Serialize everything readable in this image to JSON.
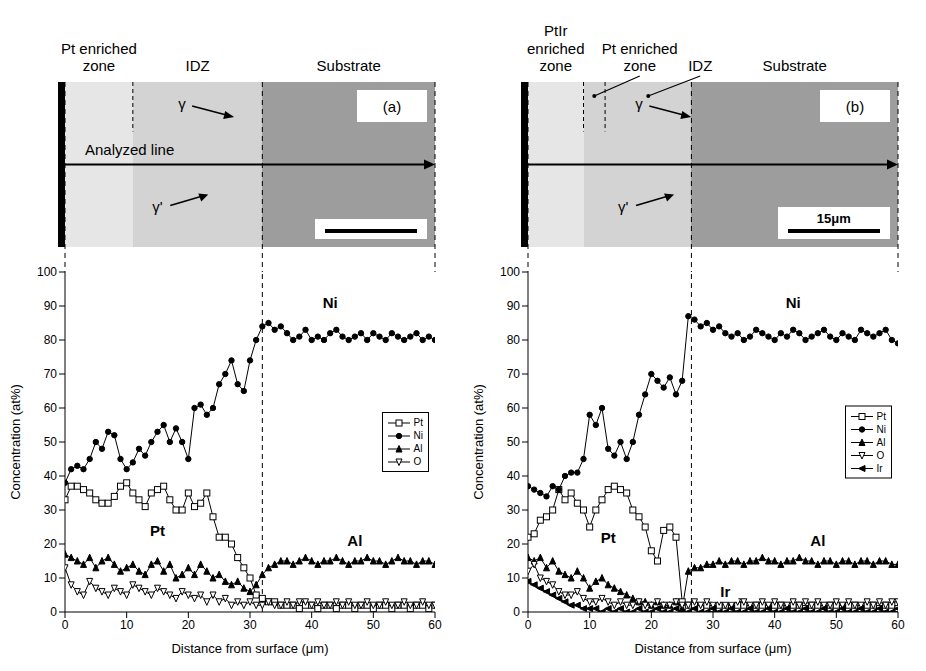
{
  "chart_data": [
    {
      "type": "line",
      "x": [
        0,
        1,
        2,
        3,
        4,
        5,
        6,
        7,
        8,
        9,
        10,
        11,
        12,
        13,
        14,
        15,
        16,
        17,
        18,
        19,
        20,
        21,
        22,
        23,
        24,
        25,
        26,
        27,
        28,
        29,
        30,
        31,
        32,
        33,
        34,
        35,
        36,
        37,
        38,
        39,
        40,
        41,
        42,
        43,
        44,
        45,
        46,
        47,
        48,
        49,
        50,
        51,
        52,
        53,
        54,
        55,
        56,
        57,
        58,
        59,
        60
      ],
      "xlim": [
        0,
        60
      ],
      "xticks": [
        0,
        10,
        20,
        30,
        40,
        50,
        60
      ],
      "ylim": [
        0,
        100
      ],
      "yticks": [
        0,
        10,
        20,
        30,
        40,
        50,
        60,
        70,
        80,
        90,
        100
      ],
      "xlabel": "Distance from surface (μm)",
      "ylabel": "Concentration (at%)",
      "grid": false,
      "legend": "center right",
      "interface": 32,
      "series": [
        {
          "name": "Pt",
          "color": "#000000",
          "marker": "open_square",
          "values": [
            33,
            37,
            37,
            36,
            35,
            33,
            32,
            32,
            34,
            37,
            38,
            35,
            33,
            31,
            35,
            36,
            37,
            33,
            30,
            30,
            35,
            31,
            32,
            35,
            28,
            22,
            22,
            20,
            16,
            13,
            10,
            5,
            4,
            3,
            3,
            2,
            2,
            2,
            1,
            2,
            2,
            1,
            2,
            2,
            1,
            2,
            2,
            1,
            2,
            2,
            1,
            2,
            2,
            1,
            2,
            2,
            1,
            2,
            2,
            1,
            2
          ]
        },
        {
          "name": "Ni",
          "color": "#000000",
          "marker": "circle",
          "values": [
            38,
            42,
            43,
            42,
            45,
            50,
            48,
            53,
            52,
            45,
            42,
            44,
            48,
            46,
            50,
            53,
            55,
            50,
            54,
            50,
            45,
            60,
            61,
            58,
            60,
            67,
            70,
            74,
            67,
            65,
            74,
            80,
            84,
            85,
            83,
            84,
            82,
            80,
            81,
            83,
            80,
            81,
            80,
            82,
            83,
            81,
            80,
            81,
            82,
            80,
            82,
            81,
            80,
            82,
            81,
            80,
            81,
            82,
            80,
            81,
            80
          ]
        },
        {
          "name": "Al",
          "color": "#000000",
          "marker": "triangle_up",
          "values": [
            17,
            16,
            15,
            14,
            16,
            13,
            15,
            16,
            14,
            12,
            13,
            14,
            12,
            11,
            14,
            15,
            12,
            14,
            10,
            11,
            13,
            11,
            14,
            12,
            10,
            11,
            9,
            8,
            9,
            7,
            6,
            8,
            11,
            13,
            14,
            15,
            15,
            14,
            15,
            16,
            15,
            14,
            15,
            15,
            16,
            15,
            14,
            15,
            15,
            16,
            15,
            15,
            14,
            15,
            16,
            15,
            15,
            14,
            15,
            15,
            14
          ]
        },
        {
          "name": "O",
          "color": "#000000",
          "marker": "open_triangle_down",
          "values": [
            13,
            8,
            6,
            5,
            9,
            7,
            6,
            5,
            7,
            6,
            5,
            8,
            7,
            6,
            5,
            7,
            6,
            5,
            4,
            6,
            5,
            4,
            5,
            3,
            5,
            3,
            4,
            2,
            3,
            2,
            3,
            2,
            2,
            3,
            2,
            2,
            3,
            2,
            3,
            3,
            2,
            3,
            2,
            2,
            3,
            2,
            3,
            2,
            2,
            3,
            2,
            2,
            3,
            2,
            2,
            3,
            2,
            2,
            3,
            2,
            2
          ]
        }
      ],
      "annotations": [
        {
          "text": "Ni",
          "x": 43,
          "y": 91
        },
        {
          "text": "Pt",
          "x": 15,
          "y": 24
        },
        {
          "text": "Al",
          "x": 47,
          "y": 21
        }
      ]
    },
    {
      "type": "line",
      "x": [
        0,
        1,
        2,
        3,
        4,
        5,
        6,
        7,
        8,
        9,
        10,
        11,
        12,
        13,
        14,
        15,
        16,
        17,
        18,
        19,
        20,
        21,
        22,
        23,
        24,
        25,
        26,
        27,
        28,
        29,
        30,
        31,
        32,
        33,
        34,
        35,
        36,
        37,
        38,
        39,
        40,
        41,
        42,
        43,
        44,
        45,
        46,
        47,
        48,
        49,
        50,
        51,
        52,
        53,
        54,
        55,
        56,
        57,
        58,
        59,
        60
      ],
      "xlim": [
        0,
        60
      ],
      "xticks": [
        0,
        10,
        20,
        30,
        40,
        50,
        60
      ],
      "ylim": [
        0,
        100
      ],
      "yticks": [
        0,
        10,
        20,
        30,
        40,
        50,
        60,
        70,
        80,
        90,
        100
      ],
      "xlabel": "Distance from surface (μm)",
      "ylabel": "Concentration (at%)",
      "grid": false,
      "legend": "center right",
      "interface": 26.5,
      "series": [
        {
          "name": "Pt",
          "color": "#000000",
          "marker": "open_square",
          "values": [
            22,
            23,
            27,
            28,
            30,
            36,
            33,
            35,
            32,
            30,
            25,
            30,
            33,
            36,
            37,
            36,
            35,
            30,
            28,
            25,
            18,
            15,
            24,
            25,
            22,
            3,
            2,
            2,
            1,
            2,
            1,
            2,
            2,
            1,
            2,
            2,
            1,
            2,
            2,
            1,
            2,
            2,
            1,
            2,
            2,
            1,
            2,
            2,
            1,
            2,
            2,
            1,
            2,
            2,
            1,
            2,
            2,
            1,
            2,
            2,
            1
          ]
        },
        {
          "name": "Ni",
          "color": "#000000",
          "marker": "circle",
          "values": [
            37,
            36,
            35,
            34,
            37,
            36,
            40,
            41,
            41,
            45,
            58,
            55,
            60,
            48,
            46,
            50,
            45,
            50,
            58,
            64,
            70,
            68,
            66,
            69,
            64,
            68,
            87,
            86,
            84,
            85,
            83,
            84,
            82,
            81,
            82,
            80,
            81,
            83,
            82,
            81,
            80,
            82,
            81,
            83,
            82,
            80,
            81,
            82,
            83,
            81,
            80,
            82,
            81,
            80,
            83,
            82,
            81,
            82,
            83,
            80,
            79
          ]
        },
        {
          "name": "Al",
          "color": "#000000",
          "marker": "triangle_up",
          "values": [
            16,
            15,
            16,
            13,
            15,
            12,
            11,
            10,
            12,
            10,
            7,
            9,
            10,
            8,
            7,
            6,
            5,
            4,
            3,
            3,
            2,
            3,
            2,
            2,
            3,
            1,
            12,
            13,
            13,
            14,
            14,
            15,
            14,
            15,
            15,
            14,
            15,
            15,
            16,
            15,
            15,
            14,
            15,
            15,
            16,
            15,
            15,
            14,
            15,
            15,
            14,
            15,
            15,
            14,
            15,
            15,
            14,
            15,
            15,
            14,
            14
          ]
        },
        {
          "name": "O",
          "color": "#000000",
          "marker": "open_triangle_down",
          "values": [
            12,
            14,
            10,
            9,
            8,
            6,
            5,
            5,
            6,
            4,
            3,
            3,
            4,
            3,
            2,
            3,
            2,
            2,
            3,
            2,
            2,
            3,
            2,
            2,
            3,
            2,
            2,
            3,
            2,
            3,
            2,
            3,
            2,
            2,
            3,
            3,
            2,
            2,
            3,
            2,
            3,
            2,
            2,
            3,
            2,
            3,
            2,
            3,
            2,
            2,
            3,
            2,
            3,
            2,
            2,
            3,
            2,
            3,
            2,
            3,
            3
          ]
        },
        {
          "name": "Ir",
          "color": "#000000",
          "marker": "triangle_left",
          "values": [
            9,
            8,
            7,
            6,
            5,
            4,
            3,
            2,
            2,
            1,
            1,
            1,
            0,
            1,
            0,
            1,
            0,
            0,
            1,
            0,
            0,
            1,
            0,
            0,
            1,
            0,
            0,
            1,
            0,
            0,
            1,
            0,
            0,
            1,
            0,
            0,
            1,
            0,
            0,
            1,
            0,
            0,
            1,
            0,
            0,
            1,
            0,
            0,
            1,
            0,
            0,
            1,
            0,
            0,
            1,
            0,
            0,
            1,
            0,
            0,
            1
          ]
        }
      ],
      "annotations": [
        {
          "text": "Ni",
          "x": 43,
          "y": 91
        },
        {
          "text": "Pt",
          "x": 13,
          "y": 22
        },
        {
          "text": "Al",
          "x": 47,
          "y": 21
        },
        {
          "text": "Ir",
          "x": 32,
          "y": 6
        }
      ]
    }
  ],
  "micrographs": [
    {
      "label": "(a)",
      "zones": [
        {
          "label": "Pt enriched zone",
          "from": 0,
          "to": 11
        },
        {
          "label": "IDZ",
          "from": 11,
          "to": 32
        },
        {
          "label": "Substrate",
          "from": 32,
          "to": 60
        }
      ],
      "phases": [
        "γ",
        "γ'"
      ],
      "analyzed_line": {
        "label": "Analyzed line",
        "from": 0,
        "to": 60
      },
      "scale_bar": {
        "length": 15
      }
    },
    {
      "label": "(b)",
      "zones": [
        {
          "label": "PtIr enriched zone",
          "from": 0,
          "to": 9
        },
        {
          "label": "Pt enriched zone",
          "from": 9,
          "to": 12.5
        },
        {
          "label": "IDZ",
          "from": 12.5,
          "to": 26.5
        },
        {
          "label": "Substrate",
          "from": 26.5,
          "to": 60
        }
      ],
      "phases": [
        "γ",
        "γ'"
      ],
      "analyzed_line": {
        "from": 0,
        "to": 60
      },
      "scale_bar": {
        "length": 15,
        "label": "15μm"
      }
    }
  ]
}
